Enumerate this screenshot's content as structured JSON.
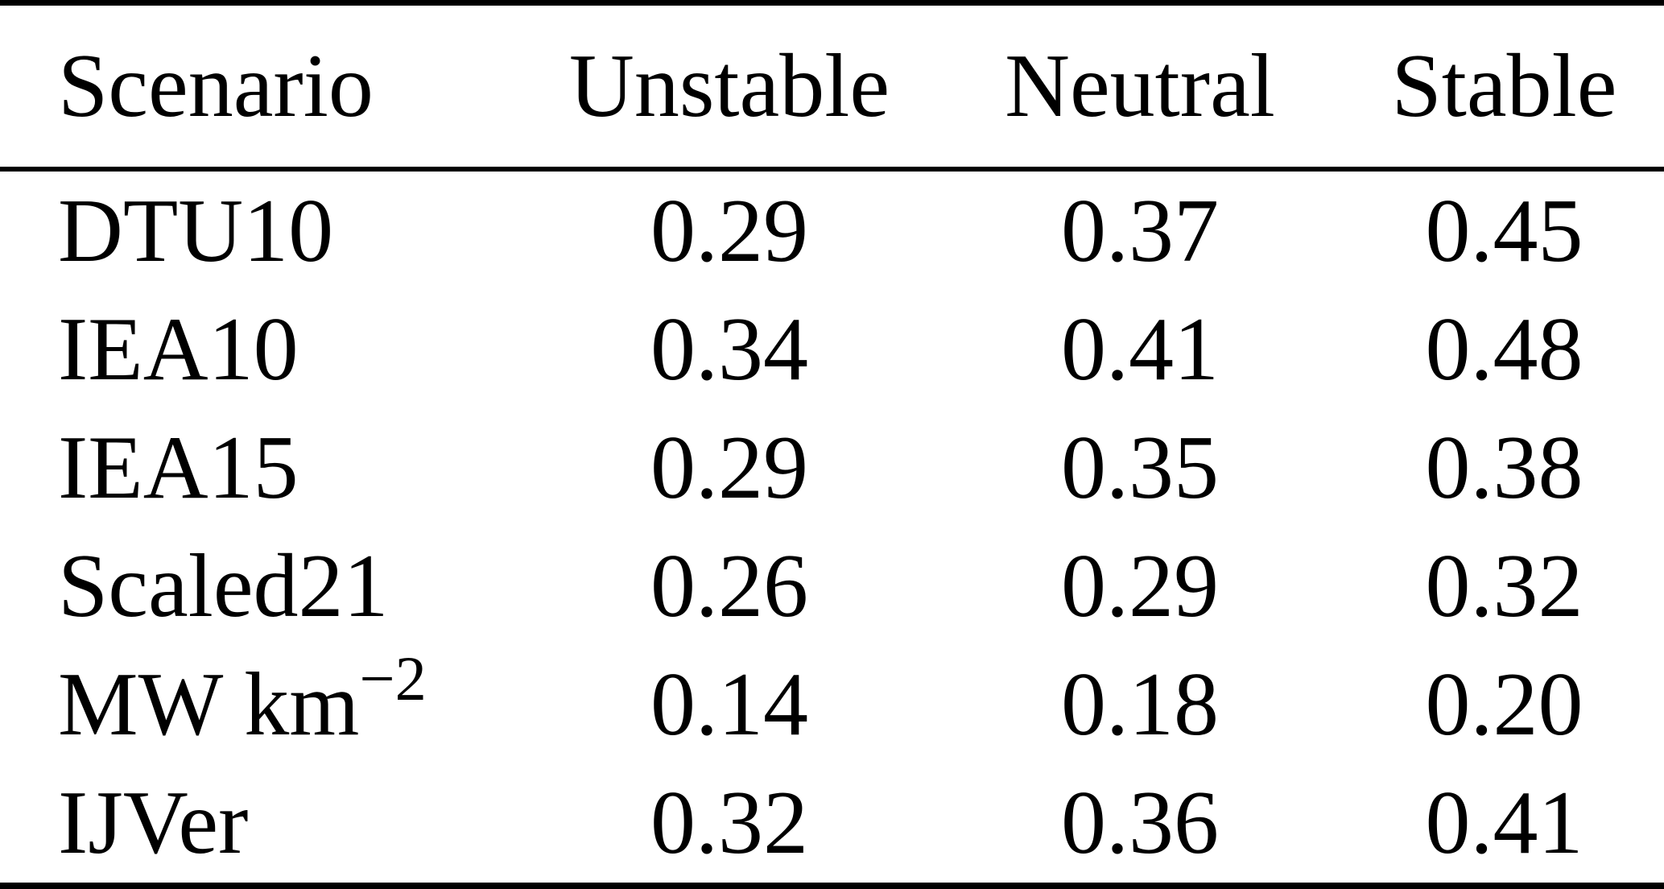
{
  "table": {
    "headers": {
      "scenario": "Scenario",
      "unstable": "Unstable",
      "neutral": "Neutral",
      "stable": "Stable"
    },
    "rows": [
      {
        "scenario": "DTU10",
        "scenario_sup": "",
        "unstable": "0.29",
        "neutral": "0.37",
        "stable": "0.45"
      },
      {
        "scenario": "IEA10",
        "scenario_sup": "",
        "unstable": "0.34",
        "neutral": "0.41",
        "stable": "0.48"
      },
      {
        "scenario": "IEA15",
        "scenario_sup": "",
        "unstable": "0.29",
        "neutral": "0.35",
        "stable": "0.38"
      },
      {
        "scenario": "Scaled21",
        "scenario_sup": "",
        "unstable": "0.26",
        "neutral": "0.29",
        "stable": "0.32"
      },
      {
        "scenario": "MW km",
        "scenario_sup": "−2",
        "unstable": "0.14",
        "neutral": "0.18",
        "stable": "0.20"
      },
      {
        "scenario": "IJVer",
        "scenario_sup": "",
        "unstable": "0.32",
        "neutral": "0.36",
        "stable": "0.41"
      }
    ]
  },
  "colors": {
    "text": "#000000",
    "background": "#ffffff",
    "rule": "#000000"
  },
  "chart_data": {
    "type": "table",
    "columns": [
      "Scenario",
      "Unstable",
      "Neutral",
      "Stable"
    ],
    "rows": [
      [
        "DTU10",
        0.29,
        0.37,
        0.45
      ],
      [
        "IEA10",
        0.34,
        0.41,
        0.48
      ],
      [
        "IEA15",
        0.29,
        0.35,
        0.38
      ],
      [
        "Scaled21",
        0.26,
        0.29,
        0.32
      ],
      [
        "MW km⁻²",
        0.14,
        0.18,
        0.2
      ],
      [
        "IJVer",
        0.32,
        0.36,
        0.41
      ]
    ]
  }
}
